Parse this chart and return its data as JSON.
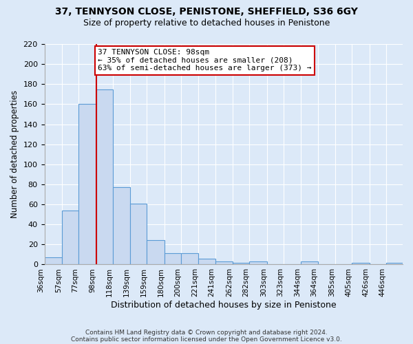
{
  "title": "37, TENNYSON CLOSE, PENISTONE, SHEFFIELD, S36 6GY",
  "subtitle": "Size of property relative to detached houses in Penistone",
  "xlabel": "Distribution of detached houses by size in Penistone",
  "ylabel": "Number of detached properties",
  "bin_labels": [
    "36sqm",
    "57sqm",
    "77sqm",
    "98sqm",
    "118sqm",
    "139sqm",
    "159sqm",
    "180sqm",
    "200sqm",
    "221sqm",
    "241sqm",
    "262sqm",
    "282sqm",
    "303sqm",
    "323sqm",
    "344sqm",
    "364sqm",
    "385sqm",
    "405sqm",
    "426sqm",
    "446sqm"
  ],
  "bin_edges": [
    36,
    57,
    77,
    98,
    118,
    139,
    159,
    180,
    200,
    221,
    241,
    262,
    282,
    303,
    323,
    344,
    364,
    385,
    405,
    426,
    446
  ],
  "bar_heights": [
    7,
    54,
    160,
    175,
    77,
    61,
    24,
    11,
    11,
    6,
    3,
    2,
    3,
    0,
    0,
    3,
    0,
    0,
    2,
    0,
    2
  ],
  "bar_color": "#c9d9f0",
  "bar_edgecolor": "#5b9bd5",
  "vline_x": 98,
  "vline_color": "#cc0000",
  "annotation_title": "37 TENNYSON CLOSE: 98sqm",
  "annotation_line1": "← 35% of detached houses are smaller (208)",
  "annotation_line2": "63% of semi-detached houses are larger (373) →",
  "annotation_box_edgecolor": "#cc0000",
  "annotation_box_facecolor": "white",
  "ylim": [
    0,
    220
  ],
  "yticks": [
    0,
    20,
    40,
    60,
    80,
    100,
    120,
    140,
    160,
    180,
    200,
    220
  ],
  "footer_line1": "Contains HM Land Registry data © Crown copyright and database right 2024.",
  "footer_line2": "Contains public sector information licensed under the Open Government Licence v3.0.",
  "bg_color": "#dce9f8",
  "plot_bg_color": "#dce9f8",
  "grid_color": "white"
}
